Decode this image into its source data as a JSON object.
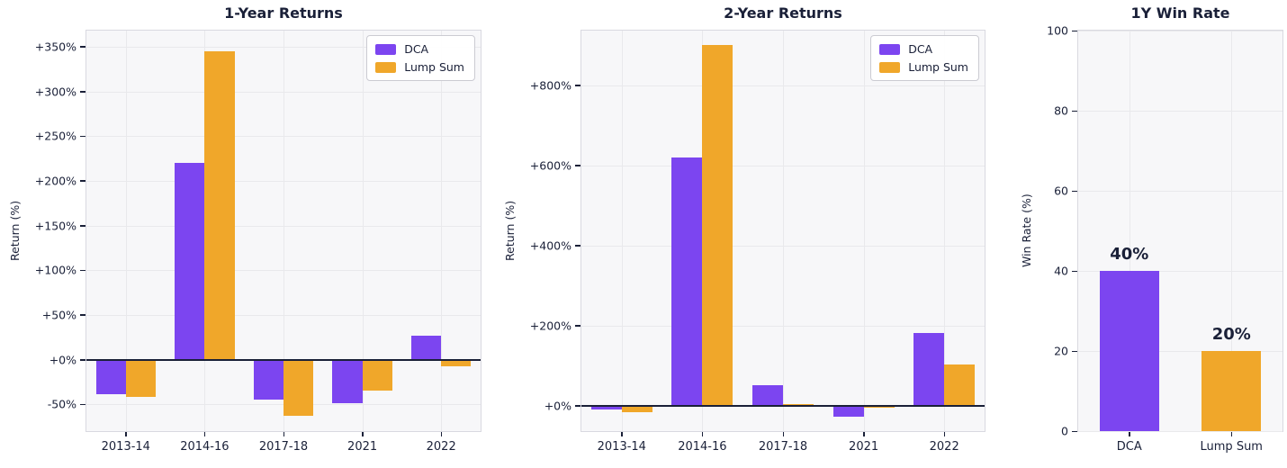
{
  "colors": {
    "dca": "#7C45F0",
    "lump_sum": "#F0A72A",
    "text": "#1A2038",
    "plot_bg": "#F7F7F9",
    "plot_border": "#D9D9E0",
    "grid": "#E9E9EC",
    "zero_line": "#1A2038",
    "fig_bg": "#FFFFFF"
  },
  "chart_data": [
    {
      "type": "bar",
      "title": "1-Year Returns",
      "ylabel": "Return (%)",
      "categories": [
        "2013-14",
        "2014-16",
        "2017-18",
        "2021",
        "2022"
      ],
      "series": [
        {
          "name": "DCA",
          "color_key": "dca",
          "values": [
            -39,
            220,
            -45,
            -49,
            27
          ]
        },
        {
          "name": "Lump Sum",
          "color_key": "lump_sum",
          "values": [
            -42,
            345,
            -63,
            -35,
            -8
          ]
        }
      ],
      "ylim": [
        -80,
        368
      ],
      "yticks": [
        {
          "value": -50,
          "label": "-50%"
        },
        {
          "value": 0,
          "label": "+0%"
        },
        {
          "value": 50,
          "label": "+50%"
        },
        {
          "value": 100,
          "label": "+100%"
        },
        {
          "value": 150,
          "label": "+150%"
        },
        {
          "value": 200,
          "label": "+200%"
        },
        {
          "value": 250,
          "label": "+250%"
        },
        {
          "value": 300,
          "label": "+300%"
        },
        {
          "value": 350,
          "label": "+350%"
        }
      ],
      "grid": true,
      "zero_line": true,
      "legend": true,
      "legend_position": "top-right"
    },
    {
      "type": "bar",
      "title": "2-Year Returns",
      "ylabel": "Return (%)",
      "categories": [
        "2013-14",
        "2014-16",
        "2017-18",
        "2021",
        "2022"
      ],
      "series": [
        {
          "name": "DCA",
          "color_key": "dca",
          "values": [
            -10,
            620,
            50,
            -27,
            182
          ]
        },
        {
          "name": "Lump Sum",
          "color_key": "lump_sum",
          "values": [
            -16,
            900,
            3,
            -6,
            103
          ]
        }
      ],
      "ylim": [
        -64,
        936
      ],
      "yticks": [
        {
          "value": 0,
          "label": "+0%"
        },
        {
          "value": 200,
          "label": "+200%"
        },
        {
          "value": 400,
          "label": "+400%"
        },
        {
          "value": 600,
          "label": "+600%"
        },
        {
          "value": 800,
          "label": "+800%"
        }
      ],
      "grid": true,
      "zero_line": true,
      "legend": true,
      "legend_position": "top-right"
    },
    {
      "type": "bar",
      "title": "1Y Win Rate",
      "ylabel": "Win Rate (%)",
      "categories": [
        "DCA",
        "Lump Sum"
      ],
      "series": [
        {
          "name": "Win Rate",
          "per_bar_colors": [
            "dca",
            "lump_sum"
          ],
          "values": [
            40,
            20
          ]
        }
      ],
      "bar_labels": [
        "40%",
        "20%"
      ],
      "ylim": [
        0,
        100
      ],
      "yticks": [
        {
          "value": 0,
          "label": "0"
        },
        {
          "value": 20,
          "label": "20"
        },
        {
          "value": 40,
          "label": "40"
        },
        {
          "value": 60,
          "label": "60"
        },
        {
          "value": 80,
          "label": "80"
        },
        {
          "value": 100,
          "label": "100"
        }
      ],
      "grid": true,
      "zero_line": false,
      "legend": false
    }
  ]
}
